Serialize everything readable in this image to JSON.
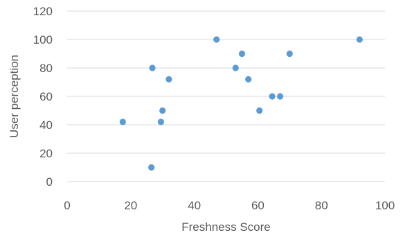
{
  "chart_data": {
    "type": "scatter",
    "title": "",
    "xlabel": "Freshness Score",
    "ylabel": "User perception",
    "xlim": [
      0,
      100
    ],
    "ylim": [
      0,
      120
    ],
    "xticks": [
      0,
      20,
      40,
      60,
      80,
      100
    ],
    "yticks": [
      0,
      20,
      40,
      60,
      80,
      100,
      120
    ],
    "grid": "horizontal",
    "legend": "none",
    "marker_color": "#5b9bd5",
    "series": [
      {
        "points": [
          {
            "x": 17.5,
            "y": 42
          },
          {
            "x": 26.5,
            "y": 10
          },
          {
            "x": 26.8,
            "y": 80
          },
          {
            "x": 29.5,
            "y": 42
          },
          {
            "x": 30,
            "y": 50
          },
          {
            "x": 32,
            "y": 72
          },
          {
            "x": 47,
            "y": 100
          },
          {
            "x": 53,
            "y": 80
          },
          {
            "x": 55,
            "y": 90
          },
          {
            "x": 57,
            "y": 72
          },
          {
            "x": 60.5,
            "y": 50
          },
          {
            "x": 64.5,
            "y": 60
          },
          {
            "x": 67,
            "y": 60
          },
          {
            "x": 70,
            "y": 90
          },
          {
            "x": 92,
            "y": 100
          }
        ]
      }
    ]
  }
}
